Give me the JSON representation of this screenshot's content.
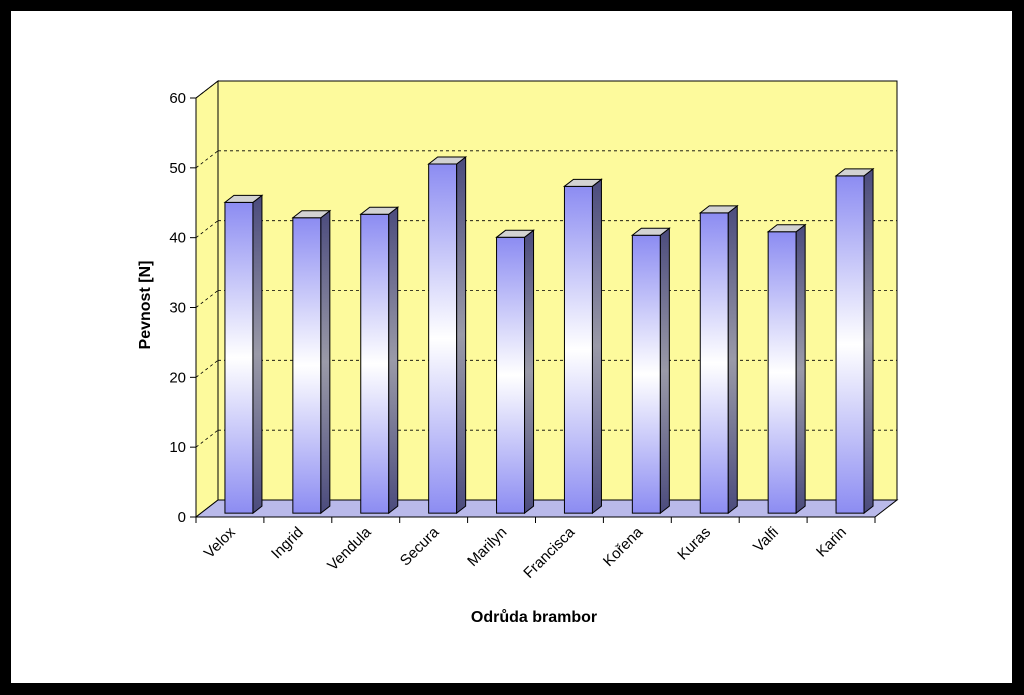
{
  "chart_data": {
    "type": "bar",
    "title": "",
    "xlabel": "Odrůda brambor",
    "ylabel": "Pevnost [N]",
    "categories": [
      "Velox",
      "Ingrid",
      "Vendula",
      "Secura",
      "Marilyn",
      "Francisca",
      "Kořena",
      "Kuras",
      "Valfi",
      "Karin"
    ],
    "values": [
      44.5,
      42.3,
      42.8,
      50,
      39.5,
      46.8,
      39.8,
      43,
      40.3,
      48.3
    ],
    "ylim": [
      0,
      60
    ],
    "yticks": [
      "0",
      "10",
      "20",
      "30",
      "40",
      "50",
      "60"
    ],
    "grid": true,
    "style": "3d-column",
    "colors": {
      "wall": "#fdfa9c",
      "floor": "#b9b9ea",
      "bar_edge": "#8c8cf2",
      "bar_center": "#ffffff",
      "bar_side": "#4b4b7d",
      "bar_top": "#d2d2d2"
    }
  }
}
